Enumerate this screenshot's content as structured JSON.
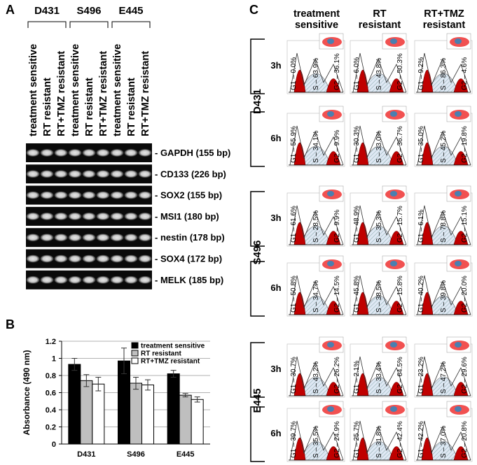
{
  "panels": {
    "a": "A",
    "b": "B",
    "c": "C"
  },
  "gel": {
    "cell_lines": [
      "D431",
      "S496",
      "E445"
    ],
    "lanes": [
      "treatment sensitive",
      "RT resistant",
      "RT+TMZ resistant"
    ],
    "bands": [
      "- GAPDH (155 bp)",
      "- CD133 (226 bp)",
      "- SOX2 (155 bp)",
      "- MSI1 (180 bp)",
      "- nestin (178 bp)",
      "- SOX4 (172 bp)",
      "- MELK (185 bp)"
    ]
  },
  "chart_data": {
    "type": "bar",
    "ylabel": "Absorbance (490 nm)",
    "categories": [
      "D431",
      "S496",
      "E445"
    ],
    "series": [
      {
        "name": "treatment sensitive",
        "color": "#000000",
        "values": [
          0.93,
          0.97,
          0.82
        ],
        "errors": [
          0.07,
          0.15,
          0.04
        ]
      },
      {
        "name": "RT resistant",
        "color": "#bfbfbf",
        "values": [
          0.74,
          0.71,
          0.57
        ],
        "errors": [
          0.07,
          0.07,
          0.02
        ]
      },
      {
        "name": "RT+TMZ resistant",
        "color": "#ffffff",
        "values": [
          0.7,
          0.69,
          0.52
        ],
        "errors": [
          0.08,
          0.06,
          0.03
        ]
      }
    ],
    "ylim": [
      0,
      1.2
    ],
    "yticks": [
      0,
      0.2,
      0.4,
      0.6,
      0.8,
      1,
      1.2
    ],
    "grid": true,
    "legend": "upper right"
  },
  "cytometry": {
    "columns": [
      "treatment sensitive",
      "RT resistant",
      "RT+TMZ resistant"
    ],
    "rows": [
      {
        "cell_line": "D431",
        "times": [
          {
            "time": "3h",
            "cells": [
              [
                "G1 – 0.0%",
                "S – 63.9%",
                "G2 – 36.1%"
              ],
              [
                "G1 – 6.0%",
                "S – 43.8%",
                "G2 – 50.3%"
              ],
              [
                "G1 – 9.2%",
                "S – 86.3%",
                "G2 – 4.6%"
              ]
            ]
          },
          {
            "time": "6h",
            "cells": [
              [
                "G1 – 55.9%",
                "S – 34.1%",
                "G2 – 9.9%"
              ],
              [
                "G1 – 30.3%",
                "S – 33.0%",
                "G2 – 36.7%"
              ],
              [
                "G1 – 35.0%",
                "S – 45.2%",
                "G2 – 19.8%"
              ]
            ]
          }
        ]
      },
      {
        "cell_line": "S496",
        "times": [
          {
            "time": "3h",
            "cells": [
              [
                "G1 – 61.6%",
                "S – 28.5%",
                "G2 – 9.9%"
              ],
              [
                "G1 – 48.9%",
                "S – 35.3%",
                "G2 – 15.7%"
              ],
              [
                "G1 – 6.1%",
                "S – 78.8%",
                "G2 – 15.1%"
              ]
            ]
          },
          {
            "time": "6h",
            "cells": [
              [
                "G1 – 50.8%",
                "S – 34.7%",
                "G2 – 14.5%"
              ],
              [
                "G1 – 45.8%",
                "S – 38.5%",
                "G2 – 15.8%"
              ],
              [
                "G1 – 40.2%",
                "S – 39.8%",
                "G2 – 20.0%"
              ]
            ]
          }
        ]
      },
      {
        "cell_line": "E445",
        "times": [
          {
            "time": "3h",
            "cells": [
              [
                "G1 – 30.7%",
                "S – 43.2%",
                "G2 – 26.2%"
              ],
              [
                "G1 – 2.1%",
                "S – 33.4%",
                "G2 – 64.5%"
              ],
              [
                "G1 – 23.2%",
                "S – 47.2%",
                "G2 – 29.6%"
              ]
            ]
          },
          {
            "time": "6h",
            "cells": [
              [
                "G1 – 39.7%",
                "S – 35.5%",
                "G2 – 24.9%"
              ],
              [
                "G1 – 25.7%",
                "S – 31.8%",
                "G2 – 42.4%"
              ],
              [
                "G1 – 42.2%",
                "S – 37.0%",
                "G2 – 20.8%"
              ]
            ]
          }
        ]
      }
    ]
  }
}
